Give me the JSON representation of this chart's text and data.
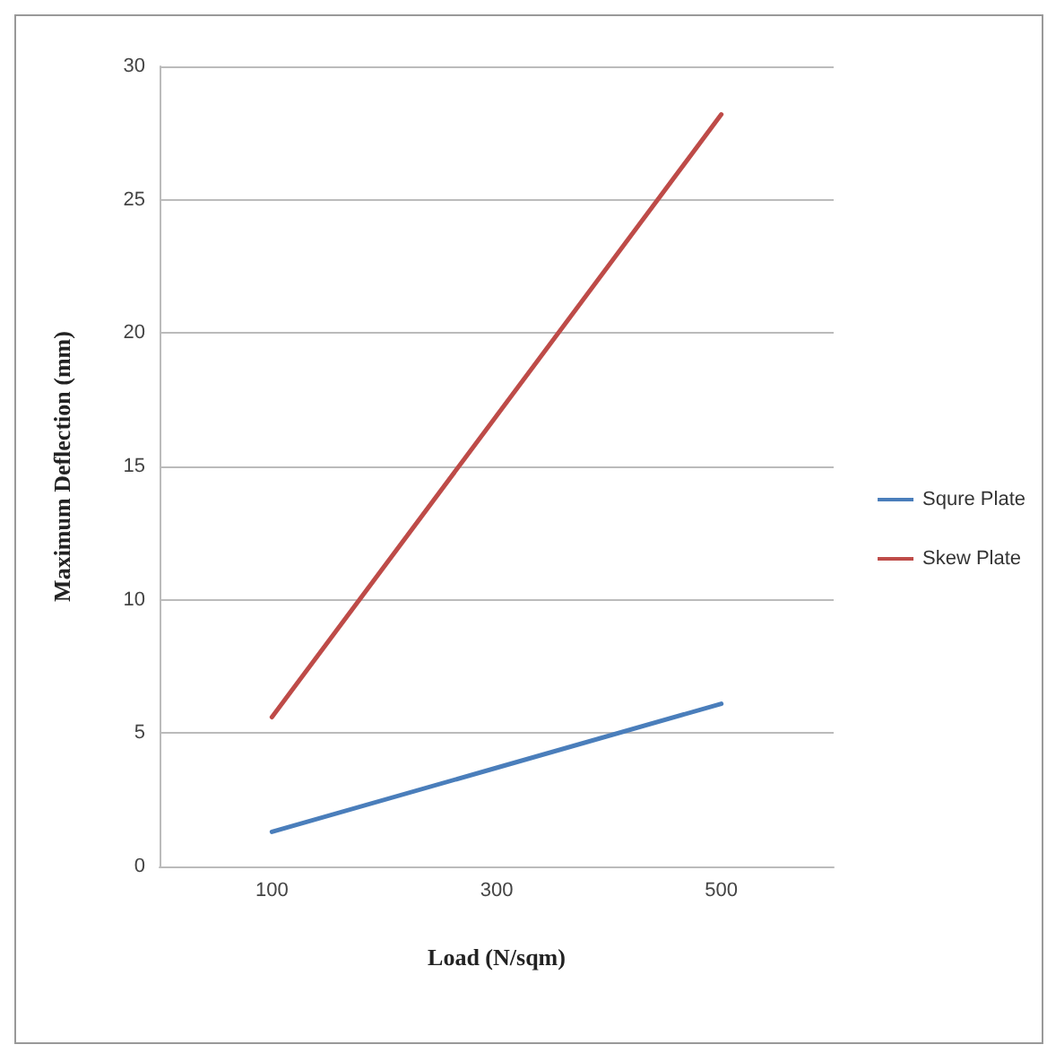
{
  "chart_data": {
    "type": "line",
    "xlabel": "Load (N/sqm)",
    "ylabel": "Maximum Deflection (mm)",
    "categories": [
      "100",
      "300",
      "500"
    ],
    "series": [
      {
        "name": "Squre Plate",
        "color": "#4a7ebb",
        "values": [
          1.3,
          3.7,
          6.1
        ]
      },
      {
        "name": "Skew Plate",
        "color": "#be4b48",
        "values": [
          5.6,
          16.9,
          28.2
        ]
      }
    ],
    "ylim": [
      0,
      30
    ],
    "yticks": [
      0,
      5,
      10,
      15,
      20,
      25,
      30
    ],
    "grid": "y",
    "legend": "right",
    "marker": "none"
  }
}
